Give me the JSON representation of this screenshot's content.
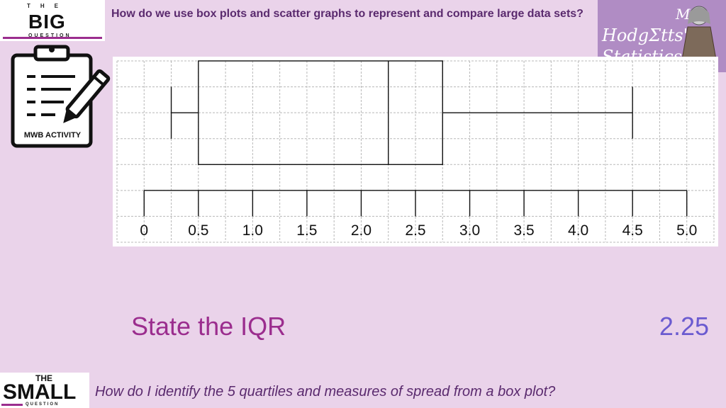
{
  "header": {
    "logo_the": "THE",
    "logo_big": "BIG",
    "logo_question": "QUESTION",
    "big_question": "How do we use box plots and scatter graphs to represent and compare large data sets?"
  },
  "brand": {
    "line1": "Mrs",
    "line2": "HodgΣtts'",
    "line3": "Statistics"
  },
  "activity": {
    "icon": "clipboard-pencil-icon",
    "label": "MWB ACTIVITY"
  },
  "chart_data": {
    "type": "boxplot",
    "title": "",
    "xlabel": "",
    "ylabel": "",
    "xlim": [
      -0.25,
      5.25
    ],
    "tick_values": [
      0,
      0.5,
      1.0,
      1.5,
      2.0,
      2.5,
      3.0,
      3.5,
      4.0,
      4.5,
      5.0
    ],
    "tick_labels": [
      "0",
      "0.5",
      "1.0",
      "1.5",
      "2.0",
      "2.5",
      "3.0",
      "3.5",
      "4.0",
      "4.5",
      "5.0"
    ],
    "min": 0.25,
    "q1": 0.5,
    "median": 2.25,
    "q3": 2.75,
    "max": 4.5,
    "grid": true,
    "grid_step": 0.25
  },
  "task": {
    "prompt": "State the IQR",
    "answer": "2.25"
  },
  "footer": {
    "logo_the": "THE",
    "logo_small": "SMALL",
    "logo_question": "QUESTION",
    "small_question": "How do I identify the 5 quartiles and measures of spread  from a box plot?"
  },
  "colors": {
    "background": "#ead3ea",
    "accent": "#9b2d8e",
    "answer": "#6b5bd0",
    "brand_panel": "#b08cc4",
    "grid": "#b8b8b8"
  }
}
